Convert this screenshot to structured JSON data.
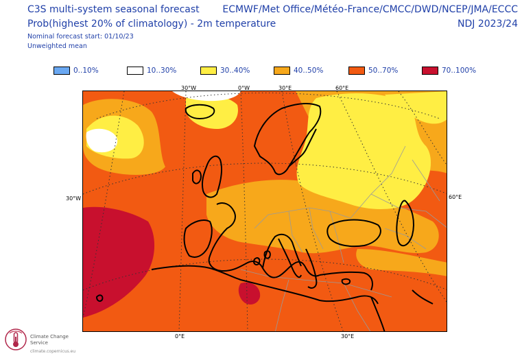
{
  "header": {
    "title_line1": "C3S multi-system seasonal forecast",
    "title_line2": "Prob(highest 20% of climatology) - 2m temperature",
    "forecast_start": "Nominal forecast start: 01/10/23",
    "weighting": "Unweighted mean",
    "systems": "ECMWF/Met Office/Météo-France/CMCC/DWD/NCEP/JMA/ECCC",
    "period": "NDJ 2023/24"
  },
  "legend": [
    {
      "label": "0..10%",
      "color": "#6aa8f2"
    },
    {
      "label": "10..30%",
      "color": "#ffffff"
    },
    {
      "label": "30..40%",
      "color": "#ffee44"
    },
    {
      "label": "40..50%",
      "color": "#f7a81b"
    },
    {
      "label": "50..70%",
      "color": "#f25a12"
    },
    {
      "label": "70..100%",
      "color": "#c8102e"
    }
  ],
  "map": {
    "top_labels": [
      "30°W",
      "0°W",
      "30°E",
      "60°E"
    ],
    "left_label": "30°W",
    "right_label": "60°E",
    "bottom_labels": [
      "0°E",
      "30°E"
    ]
  },
  "logo": {
    "name": "Climate Change Service",
    "url": "climate.copernicus.eu",
    "icon": "thermometer-globe-icon"
  }
}
